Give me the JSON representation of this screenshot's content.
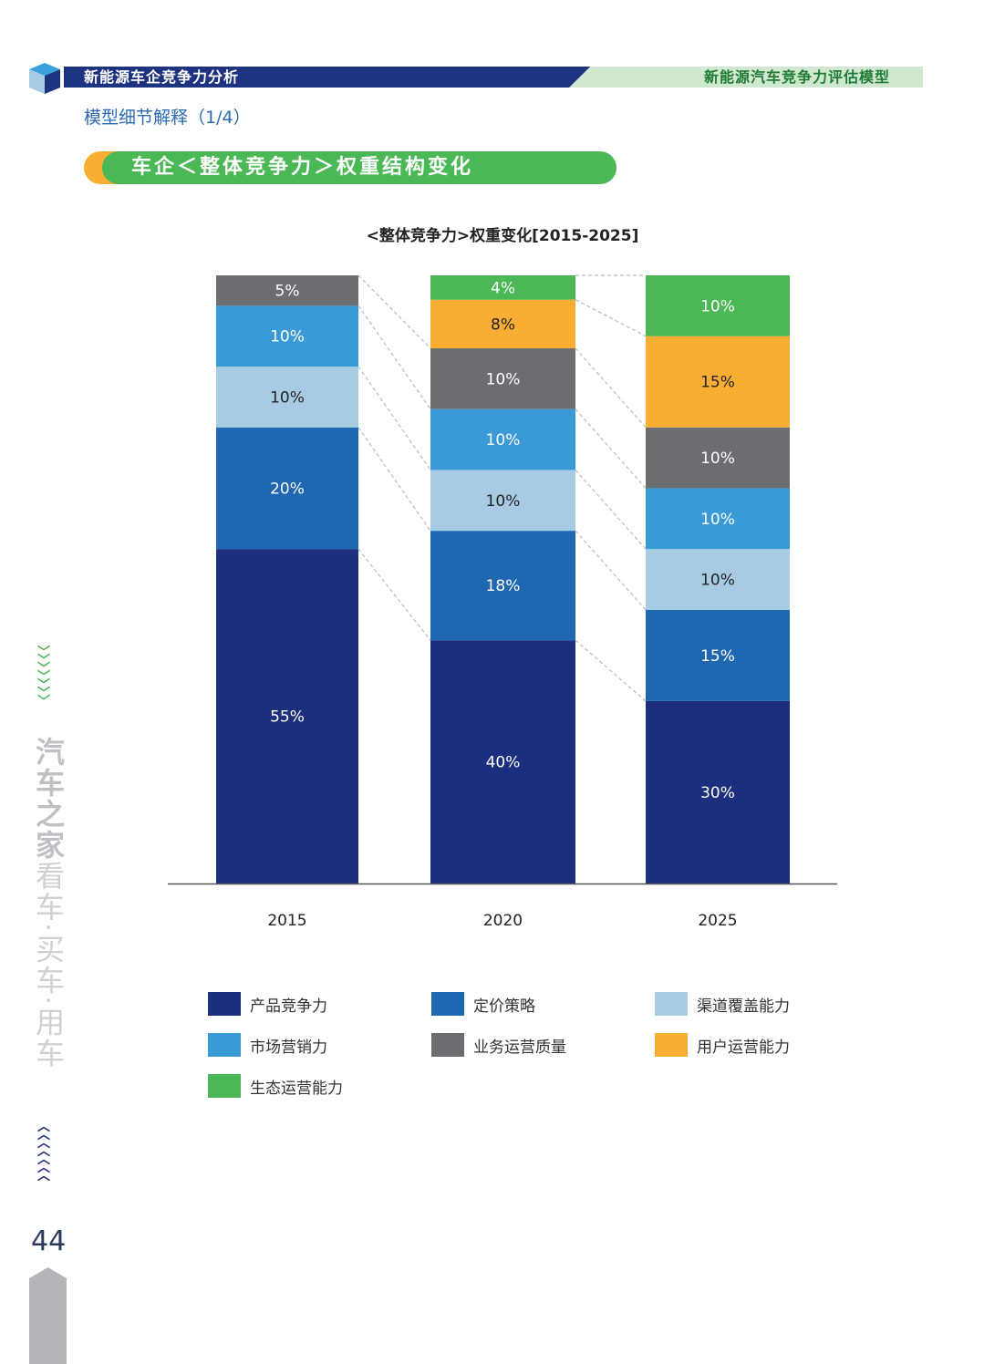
{
  "header": {
    "left": "新能源车企竞争力分析",
    "right": "新能源汽车竞争力评估模型"
  },
  "subtitle": "模型细节解释（1/4）",
  "section_title": "车企＜整体竞争力＞权重结构变化",
  "sidebar": {
    "brand": "汽车之家",
    "slogan": "看车·买车·用车",
    "page_number": "44"
  },
  "chart_data": {
    "type": "bar",
    "stacked": true,
    "title": "<整体竞争力>权重变化[2015-2025]",
    "categories": [
      "2015",
      "2020",
      "2025"
    ],
    "ylim": [
      0,
      100
    ],
    "unit": "%",
    "series": [
      {
        "name": "产品竞争力",
        "color": "#1b2f7e",
        "values": [
          55,
          40,
          30
        ]
      },
      {
        "name": "定价策略",
        "color": "#1f67b1",
        "values": [
          20,
          18,
          15
        ]
      },
      {
        "name": "渠道覆盖能力",
        "color": "#a6cbe3",
        "values": [
          10,
          10,
          10
        ]
      },
      {
        "name": "市场营销力",
        "color": "#3a9ad8",
        "values": [
          10,
          10,
          10
        ]
      },
      {
        "name": "业务运营质量",
        "color": "#6b6d71",
        "values": [
          5,
          10,
          10
        ]
      },
      {
        "name": "用户运营能力",
        "color": "#f9ae33",
        "values": [
          0,
          8,
          15
        ]
      },
      {
        "name": "生态运营能力",
        "color": "#4ab855",
        "values": [
          0,
          4,
          10
        ]
      }
    ],
    "legend": "bottom"
  }
}
